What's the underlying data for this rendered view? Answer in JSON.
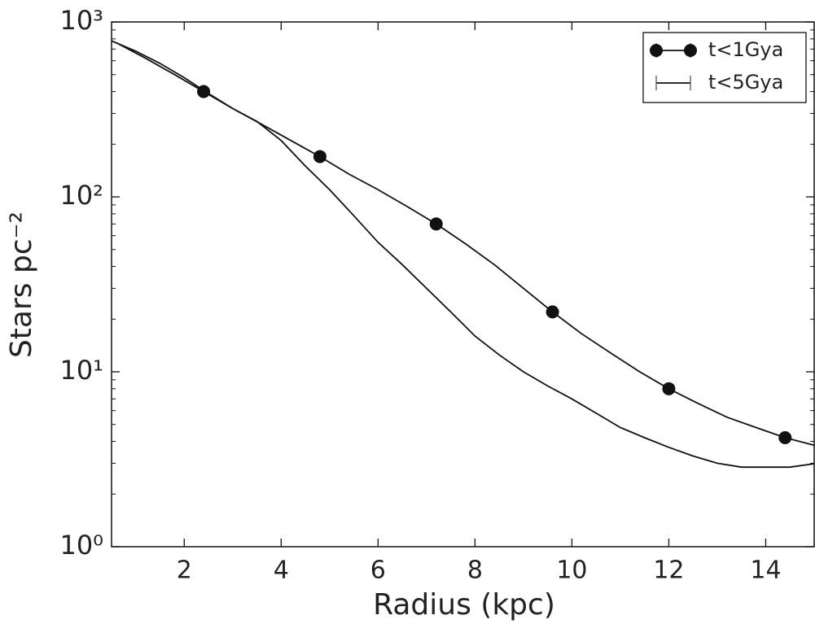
{
  "chart_data": {
    "type": "line",
    "xlabel": "Radius (kpc)",
    "ylabel": "Stars pc⁻²",
    "xlim": [
      0.5,
      15
    ],
    "ylim": [
      1,
      1000
    ],
    "xticks": [
      2,
      4,
      6,
      8,
      10,
      12,
      14
    ],
    "yticks": [
      {
        "value": 1,
        "label": "10⁰"
      },
      {
        "value": 10,
        "label": "10¹"
      },
      {
        "value": 100,
        "label": "10²"
      },
      {
        "value": 1000,
        "label": "10³"
      }
    ],
    "yscale": "log",
    "legend": "upper right",
    "series": [
      {
        "name": "t<1Gya",
        "color": "#111111",
        "marker": "circle",
        "x": [
          0.6,
          1.2,
          1.8,
          2.4,
          3.0,
          3.6,
          4.2,
          4.8,
          5.4,
          6.0,
          6.6,
          7.2,
          7.8,
          8.4,
          9.0,
          9.6,
          10.2,
          10.8,
          11.4,
          12.0,
          12.6,
          13.2,
          13.8,
          14.4,
          15.0
        ],
        "values": [
          760,
          620,
          500,
          400,
          320,
          260,
          210,
          170,
          135,
          110,
          88,
          70,
          54,
          41,
          30,
          22,
          16.5,
          12.8,
          10,
          8,
          6.6,
          5.5,
          4.8,
          4.2,
          3.8
        ]
      },
      {
        "name": "t<5Gya",
        "color": "#111111",
        "marker": "none",
        "x": [
          0.5,
          1,
          1.5,
          2,
          2.5,
          3,
          3.5,
          4,
          4.5,
          5,
          5.5,
          6,
          6.5,
          7,
          7.5,
          8,
          8.5,
          9,
          9.5,
          10,
          10.5,
          11,
          11.5,
          12,
          12.5,
          13,
          13.5,
          14,
          14.5,
          15
        ],
        "values": [
          780,
          680,
          580,
          480,
          390,
          320,
          270,
          210,
          150,
          110,
          78,
          55,
          41,
          30,
          22,
          16,
          12.5,
          10,
          8.3,
          7,
          5.8,
          4.8,
          4.2,
          3.7,
          3.3,
          3.0,
          2.85,
          2.85,
          2.85,
          2.98
        ]
      }
    ]
  }
}
